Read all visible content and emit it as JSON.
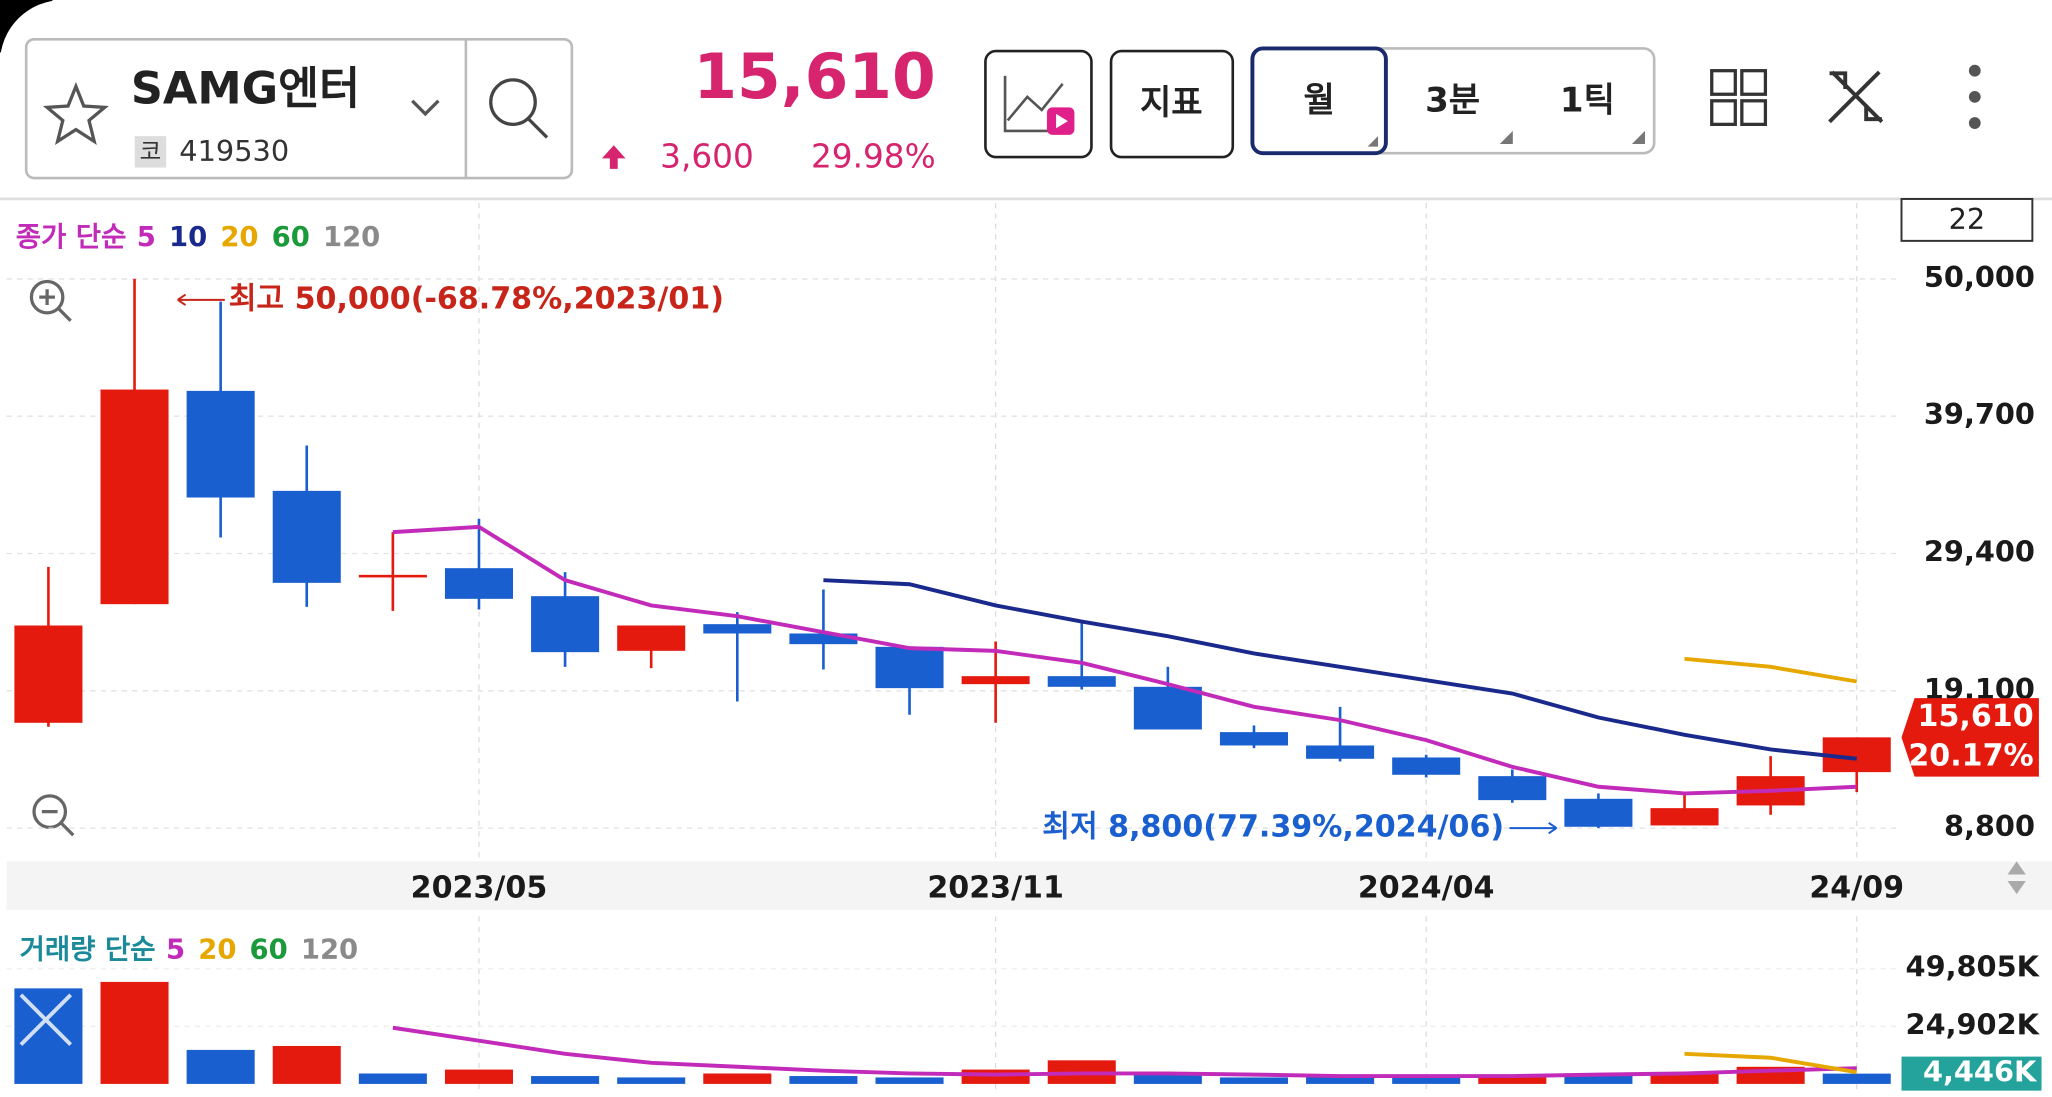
{
  "header": {
    "name": "SAMG엔터",
    "code_label": "코",
    "code": "419530",
    "price": "15,610",
    "change": "3,600",
    "change_pct": "29.98%",
    "indicator_button": "지표",
    "periods": [
      "월",
      "3분",
      "1틱"
    ]
  },
  "chart_data": [
    {
      "type": "candlestick",
      "legend_title": "종가 단순",
      "visible_count": 22,
      "categories": [
        null,
        null,
        null,
        null,
        null,
        "2023/05",
        null,
        null,
        null,
        null,
        null,
        "2023/11",
        null,
        null,
        null,
        null,
        "2024/04",
        null,
        null,
        null,
        null,
        "24/09"
      ],
      "open": [
        16700,
        25600,
        41600,
        34100,
        27700,
        28300,
        26200,
        22100,
        24100,
        23400,
        22400,
        19600,
        20200,
        19400,
        16000,
        15000,
        14100,
        12700,
        11000,
        9000,
        10500,
        13000
      ],
      "high": [
        28400,
        50000,
        48300,
        37500,
        31000,
        32000,
        28000,
        24000,
        25000,
        26700,
        22400,
        22800,
        24200,
        20900,
        16500,
        17900,
        14300,
        13200,
        11400,
        11400,
        14200,
        15610
      ],
      "low": [
        16400,
        25600,
        30600,
        25400,
        25100,
        25200,
        20900,
        20800,
        18300,
        20700,
        17300,
        16700,
        19200,
        16200,
        14800,
        13800,
        12600,
        10700,
        8800,
        9000,
        9800,
        11500
      ],
      "close": [
        24000,
        41700,
        33600,
        27200,
        27800,
        26000,
        22000,
        24000,
        23400,
        22600,
        19300,
        20200,
        19400,
        16200,
        15000,
        14000,
        12800,
        10900,
        8900,
        10300,
        12700,
        15610
      ],
      "up_color": "#e51a0e",
      "down_color": "#1a5fcf",
      "series": [
        {
          "name": "5",
          "color": "#c22bb9",
          "values": [
            null,
            null,
            null,
            null,
            31000,
            31400,
            27400,
            25500,
            24700,
            23500,
            22300,
            22100,
            21200,
            19600,
            17900,
            16900,
            15400,
            13400,
            11900,
            11400,
            11600,
            11900
          ]
        },
        {
          "name": "10",
          "color": "#1a2a8c",
          "values": [
            null,
            null,
            null,
            null,
            null,
            null,
            null,
            null,
            null,
            27400,
            27100,
            25500,
            24300,
            23200,
            21900,
            20900,
            19900,
            18900,
            17100,
            15800,
            14700,
            14000
          ]
        },
        {
          "name": "20",
          "color": "#e6a800",
          "values": [
            null,
            null,
            null,
            null,
            null,
            null,
            null,
            null,
            null,
            null,
            null,
            null,
            null,
            null,
            null,
            null,
            null,
            null,
            null,
            21500,
            20900,
            19800
          ]
        },
        {
          "name": "60",
          "color": "#1a9a3a",
          "values": [
            null,
            null,
            null,
            null,
            null,
            null,
            null,
            null,
            null,
            null,
            null,
            null,
            null,
            null,
            null,
            null,
            null,
            null,
            null,
            null,
            null,
            null
          ]
        },
        {
          "name": "120",
          "color": "#8a8a8a",
          "values": [
            null,
            null,
            null,
            null,
            null,
            null,
            null,
            null,
            null,
            null,
            null,
            null,
            null,
            null,
            null,
            null,
            null,
            null,
            null,
            null,
            null,
            null
          ]
        }
      ],
      "ylim": [
        6600,
        55800
      ],
      "yticks": [
        {
          "value": 8800,
          "label": "8,800"
        },
        {
          "value": 19100,
          "label": "19,100"
        },
        {
          "value": 29400,
          "label": "29,400"
        },
        {
          "value": 39700,
          "label": "39,700"
        },
        {
          "value": 50000,
          "label": "50,000"
        }
      ],
      "grid": true,
      "max_annotation": "최고 50,000(-68.78%,2023/01)",
      "min_annotation": "최저 8,800(77.39%,2024/06)",
      "current": {
        "value": 15610,
        "label": "15,610"
      },
      "current_change": "20.17%"
    },
    {
      "type": "bar",
      "legend_title": "거래량 단순",
      "values": [
        41300,
        44100,
        14700,
        16400,
        4500,
        6200,
        3400,
        2800,
        4500,
        3400,
        2800,
        6200,
        10200,
        4500,
        2800,
        3400,
        2800,
        3400,
        4000,
        5100,
        7400,
        4446
      ],
      "colors": [
        "#1a5fcf",
        "#e51a0e",
        "#1a5fcf",
        "#e51a0e",
        "#1a5fcf",
        "#e51a0e",
        "#1a5fcf",
        "#1a5fcf",
        "#e51a0e",
        "#1a5fcf",
        "#1a5fcf",
        "#e51a0e",
        "#e51a0e",
        "#1a5fcf",
        "#1a5fcf",
        "#1a5fcf",
        "#1a5fcf",
        "#e51a0e",
        "#1a5fcf",
        "#e51a0e",
        "#e51a0e",
        "#1a5fcf"
      ],
      "series": [
        {
          "name": "5",
          "color": "#c22bb9",
          "values": [
            null,
            null,
            null,
            null,
            24300,
            18700,
            13000,
            9100,
            7400,
            5700,
            4500,
            4000,
            4500,
            4500,
            4000,
            3400,
            3400,
            3400,
            4000,
            4500,
            5700,
            6800
          ]
        },
        {
          "name": "20",
          "color": "#e6a800",
          "values": [
            null,
            null,
            null,
            null,
            null,
            null,
            null,
            null,
            null,
            null,
            null,
            null,
            null,
            null,
            null,
            null,
            null,
            null,
            null,
            13000,
            11300,
            5100
          ]
        },
        {
          "name": "60",
          "color": "#1a9a3a",
          "values": [
            null,
            null,
            null,
            null,
            null,
            null,
            null,
            null,
            null,
            null,
            null,
            null,
            null,
            null,
            null,
            null,
            null,
            null,
            null,
            null,
            null,
            null
          ]
        },
        {
          "name": "120",
          "color": "#8a8a8a",
          "values": [
            null,
            null,
            null,
            null,
            null,
            null,
            null,
            null,
            null,
            null,
            null,
            null,
            null,
            null,
            null,
            null,
            null,
            null,
            null,
            null,
            null,
            null
          ]
        }
      ],
      "ylim": [
        0,
        60000
      ],
      "yticks": [
        {
          "value": 24902,
          "label": "24,902K"
        },
        {
          "value": 49805,
          "label": "49,805K"
        }
      ],
      "current": {
        "value": 4446,
        "label": "4,446K"
      }
    }
  ]
}
